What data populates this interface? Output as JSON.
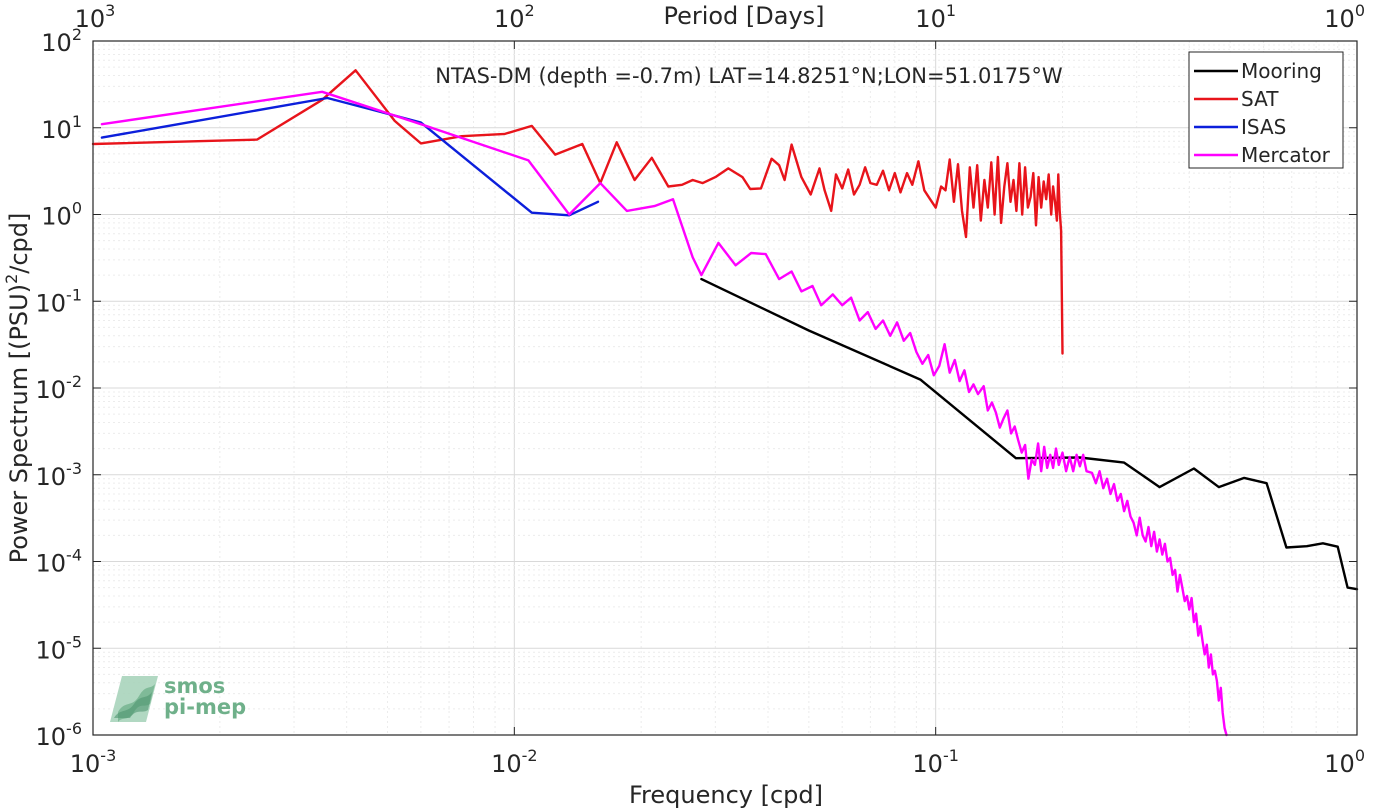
{
  "chart_data": {
    "type": "line",
    "title": "NTAS-DM (depth =-0.7m) LAT=14.8251°N;LON=51.0175°W",
    "xlabel": "Frequency [cpd]",
    "ylabel": "Power Spectrum [(PSU)²/cpd]",
    "ylabel_parts": {
      "pre": "Power Spectrum [(PSU)",
      "sup": "2",
      "post": "/cpd]"
    },
    "top_xlabel": "Period [Days]",
    "xscale": "log",
    "yscale": "log",
    "xlim": [
      0.001,
      1
    ],
    "ylim": [
      1e-06,
      100
    ],
    "grid": true,
    "legend_position": "top-right",
    "x_ticks": [
      {
        "value": 0.001,
        "base": "10",
        "exp": "-3"
      },
      {
        "value": 0.01,
        "base": "10",
        "exp": "-2"
      },
      {
        "value": 0.1,
        "base": "10",
        "exp": "-1"
      },
      {
        "value": 1,
        "base": "10",
        "exp": "0"
      }
    ],
    "top_ticks": [
      {
        "value": 1000,
        "base": "10",
        "exp": "3"
      },
      {
        "value": 100,
        "base": "10",
        "exp": "2"
      },
      {
        "value": 10,
        "base": "10",
        "exp": "1"
      },
      {
        "value": 1,
        "base": "10",
        "exp": "0"
      }
    ],
    "y_ticks": [
      {
        "value": 1e-06,
        "base": "10",
        "exp": "-6"
      },
      {
        "value": 1e-05,
        "base": "10",
        "exp": "-5"
      },
      {
        "value": 0.0001,
        "base": "10",
        "exp": "-4"
      },
      {
        "value": 0.001,
        "base": "10",
        "exp": "-3"
      },
      {
        "value": 0.01,
        "base": "10",
        "exp": "-2"
      },
      {
        "value": 0.1,
        "base": "10",
        "exp": "-1"
      },
      {
        "value": 1,
        "base": "10",
        "exp": "0"
      },
      {
        "value": 10,
        "base": "10",
        "exp": "1"
      },
      {
        "value": 100,
        "base": "10",
        "exp": "2"
      }
    ],
    "series": [
      {
        "name": "Mooring",
        "color": "#000000",
        "points": [
          [
            0.0278,
            0.18
          ],
          [
            0.05,
            0.046
          ],
          [
            0.092,
            0.0125
          ],
          [
            0.155,
            0.00155
          ],
          [
            0.22,
            0.00158
          ],
          [
            0.28,
            0.00138
          ],
          [
            0.34,
            0.00072
          ],
          [
            0.41,
            0.00118
          ],
          [
            0.47,
            0.00072
          ],
          [
            0.54,
            0.00092
          ],
          [
            0.61,
            0.0008
          ],
          [
            0.68,
            0.000145
          ],
          [
            0.76,
            0.00015
          ],
          [
            0.83,
            0.000162
          ],
          [
            0.9,
            0.000148
          ],
          [
            0.95,
            5e-05
          ],
          [
            1.0,
            4.8e-05
          ]
        ]
      },
      {
        "name": "SAT",
        "color": "#e8141b",
        "points": [
          [
            0.001,
            6.5
          ],
          [
            0.00245,
            7.3
          ],
          [
            0.0035,
            21
          ],
          [
            0.0042,
            46
          ],
          [
            0.0052,
            12
          ],
          [
            0.006,
            6.6
          ],
          [
            0.0075,
            8.0
          ],
          [
            0.0095,
            8.5
          ],
          [
            0.011,
            10.5
          ],
          [
            0.0125,
            4.9
          ],
          [
            0.0145,
            6.5
          ],
          [
            0.016,
            2.3
          ],
          [
            0.0175,
            6.8
          ],
          [
            0.0193,
            2.5
          ],
          [
            0.0212,
            4.5
          ],
          [
            0.0232,
            2.1
          ],
          [
            0.025,
            2.2
          ],
          [
            0.0265,
            2.5
          ],
          [
            0.028,
            2.3
          ],
          [
            0.03,
            2.7
          ],
          [
            0.0322,
            3.4
          ],
          [
            0.0348,
            2.7
          ],
          [
            0.0363,
            1.97
          ],
          [
            0.0385,
            2.0
          ],
          [
            0.0408,
            4.4
          ],
          [
            0.0425,
            3.7
          ],
          [
            0.0438,
            2.5
          ],
          [
            0.0455,
            6.4
          ],
          [
            0.048,
            2.7
          ],
          [
            0.0505,
            1.7
          ],
          [
            0.053,
            3.4
          ],
          [
            0.0545,
            1.9
          ],
          [
            0.0565,
            1.1
          ],
          [
            0.058,
            2.9
          ],
          [
            0.06,
            2.0
          ],
          [
            0.062,
            3.3
          ],
          [
            0.064,
            1.7
          ],
          [
            0.066,
            2.2
          ],
          [
            0.068,
            3.5
          ],
          [
            0.07,
            2.3
          ],
          [
            0.0725,
            2.2
          ],
          [
            0.075,
            3.2
          ],
          [
            0.0775,
            1.9
          ],
          [
            0.08,
            3.0
          ],
          [
            0.0825,
            1.8
          ],
          [
            0.0855,
            3.0
          ],
          [
            0.088,
            2.2
          ],
          [
            0.091,
            4.1
          ],
          [
            0.094,
            1.9
          ],
          [
            0.097,
            1.5
          ],
          [
            0.1,
            1.2
          ],
          [
            0.103,
            2.1
          ],
          [
            0.1055,
            1.9
          ],
          [
            0.108,
            4.3
          ],
          [
            0.1105,
            1.4
          ],
          [
            0.113,
            3.8
          ],
          [
            0.1155,
            1.1
          ],
          [
            0.118,
            0.55
          ],
          [
            0.1205,
            3.5
          ],
          [
            0.123,
            1.2
          ],
          [
            0.1255,
            3.7
          ],
          [
            0.128,
            0.85
          ],
          [
            0.1305,
            2.5
          ],
          [
            0.133,
            1.2
          ],
          [
            0.1355,
            4.0
          ],
          [
            0.138,
            1.0
          ],
          [
            0.1405,
            4.6
          ],
          [
            0.143,
            0.8
          ],
          [
            0.1455,
            2.1
          ],
          [
            0.148,
            3.9
          ],
          [
            0.1505,
            1.4
          ],
          [
            0.153,
            2.5
          ],
          [
            0.1555,
            1.1
          ],
          [
            0.158,
            3.9
          ],
          [
            0.1605,
            1.0
          ],
          [
            0.163,
            3.5
          ],
          [
            0.1655,
            1.2
          ],
          [
            0.168,
            1.6
          ],
          [
            0.1705,
            3.0
          ],
          [
            0.173,
            0.75
          ],
          [
            0.1755,
            2.7
          ],
          [
            0.178,
            1.2
          ],
          [
            0.1805,
            2.4
          ],
          [
            0.183,
            1.5
          ],
          [
            0.1855,
            2.9
          ],
          [
            0.188,
            1.0
          ],
          [
            0.19,
            2.1
          ],
          [
            0.192,
            1.4
          ],
          [
            0.194,
            0.85
          ],
          [
            0.1955,
            2.9
          ],
          [
            0.197,
            1.1
          ],
          [
            0.1985,
            0.65
          ],
          [
            0.2,
            0.025
          ]
        ]
      },
      {
        "name": "ISAS",
        "color": "#0c1fdb",
        "points": [
          [
            0.00105,
            7.7
          ],
          [
            0.0036,
            22
          ],
          [
            0.006,
            11.5
          ],
          [
            0.011,
            1.05
          ],
          [
            0.0135,
            0.98
          ],
          [
            0.0158,
            1.4
          ]
        ]
      },
      {
        "name": "Mercator",
        "color": "#ff00ff",
        "points": [
          [
            0.00105,
            11
          ],
          [
            0.0035,
            26
          ],
          [
            0.006,
            11
          ],
          [
            0.0108,
            4.2
          ],
          [
            0.0135,
            1.0
          ],
          [
            0.016,
            2.3
          ],
          [
            0.0185,
            1.1
          ],
          [
            0.0215,
            1.25
          ],
          [
            0.0238,
            1.5
          ],
          [
            0.0265,
            0.32
          ],
          [
            0.0278,
            0.2
          ],
          [
            0.0305,
            0.47
          ],
          [
            0.0335,
            0.26
          ],
          [
            0.0365,
            0.36
          ],
          [
            0.0395,
            0.35
          ],
          [
            0.0425,
            0.18
          ],
          [
            0.0455,
            0.22
          ],
          [
            0.048,
            0.13
          ],
          [
            0.051,
            0.15
          ],
          [
            0.0535,
            0.09
          ],
          [
            0.057,
            0.12
          ],
          [
            0.06,
            0.09
          ],
          [
            0.063,
            0.11
          ],
          [
            0.066,
            0.06
          ],
          [
            0.069,
            0.075
          ],
          [
            0.072,
            0.048
          ],
          [
            0.075,
            0.06
          ],
          [
            0.078,
            0.04
          ],
          [
            0.081,
            0.057
          ],
          [
            0.084,
            0.035
          ],
          [
            0.087,
            0.043
          ],
          [
            0.09,
            0.026
          ],
          [
            0.093,
            0.019
          ],
          [
            0.096,
            0.024
          ],
          [
            0.099,
            0.014
          ],
          [
            0.102,
            0.018
          ],
          [
            0.105,
            0.032
          ],
          [
            0.108,
            0.015
          ],
          [
            0.111,
            0.021
          ],
          [
            0.114,
            0.012
          ],
          [
            0.117,
            0.016
          ],
          [
            0.12,
            0.009
          ],
          [
            0.123,
            0.011
          ],
          [
            0.126,
            0.0085
          ],
          [
            0.13,
            0.0105
          ],
          [
            0.133,
            0.0055
          ],
          [
            0.136,
            0.0068
          ],
          [
            0.139,
            0.0052
          ],
          [
            0.142,
            0.0035
          ],
          [
            0.145,
            0.0045
          ],
          [
            0.148,
            0.0055
          ],
          [
            0.151,
            0.003
          ],
          [
            0.154,
            0.0036
          ],
          [
            0.157,
            0.0025
          ],
          [
            0.16,
            0.0018
          ],
          [
            0.163,
            0.0022
          ],
          [
            0.166,
            0.0009
          ],
          [
            0.169,
            0.0015
          ],
          [
            0.172,
            0.0013
          ],
          [
            0.175,
            0.0023
          ],
          [
            0.178,
            0.0011
          ],
          [
            0.181,
            0.0021
          ],
          [
            0.184,
            0.0012
          ],
          [
            0.187,
            0.0017
          ],
          [
            0.19,
            0.0012
          ],
          [
            0.193,
            0.002
          ],
          [
            0.196,
            0.0013
          ],
          [
            0.2,
            0.0018
          ],
          [
            0.204,
            0.0011
          ],
          [
            0.208,
            0.0016
          ],
          [
            0.212,
            0.0011
          ],
          [
            0.216,
            0.0017
          ],
          [
            0.22,
            0.00125
          ],
          [
            0.224,
            0.0017
          ],
          [
            0.228,
            0.0011
          ],
          [
            0.235,
            0.00105
          ],
          [
            0.24,
            0.0008
          ],
          [
            0.245,
            0.0011
          ],
          [
            0.25,
            0.0007
          ],
          [
            0.255,
            0.0009
          ],
          [
            0.26,
            0.0006
          ],
          [
            0.265,
            0.00078
          ],
          [
            0.27,
            0.0005
          ],
          [
            0.275,
            0.0006
          ],
          [
            0.28,
            0.00038
          ],
          [
            0.285,
            0.0005
          ],
          [
            0.29,
            0.00033
          ],
          [
            0.295,
            0.00028
          ],
          [
            0.3,
            0.0002
          ],
          [
            0.305,
            0.00032
          ],
          [
            0.31,
            0.0002
          ],
          [
            0.315,
            0.00017
          ],
          [
            0.32,
            0.00025
          ],
          [
            0.325,
            0.00015
          ],
          [
            0.33,
            0.00022
          ],
          [
            0.335,
            0.00013
          ],
          [
            0.34,
            0.00018
          ],
          [
            0.345,
            0.00012
          ],
          [
            0.35,
            0.00016
          ],
          [
            0.355,
            0.0001
          ],
          [
            0.36,
            0.00011
          ],
          [
            0.365,
            7e-05
          ],
          [
            0.37,
            8e-05
          ],
          [
            0.375,
            4.5e-05
          ],
          [
            0.38,
            7e-05
          ],
          [
            0.385,
            5e-05
          ],
          [
            0.39,
            3.5e-05
          ],
          [
            0.395,
            4e-05
          ],
          [
            0.4,
            2.8e-05
          ],
          [
            0.405,
            3.8e-05
          ],
          [
            0.41,
            2e-05
          ],
          [
            0.415,
            2.5e-05
          ],
          [
            0.42,
            1.4e-05
          ],
          [
            0.425,
            1.8e-05
          ],
          [
            0.43,
            1.2e-05
          ],
          [
            0.435,
            8.5e-06
          ],
          [
            0.44,
            1.1e-05
          ],
          [
            0.445,
            6e-06
          ],
          [
            0.45,
            8.5e-06
          ],
          [
            0.455,
            5e-06
          ],
          [
            0.46,
            5.5e-06
          ],
          [
            0.465,
            4.2e-06
          ],
          [
            0.47,
            2.5e-06
          ],
          [
            0.475,
            3.5e-06
          ],
          [
            0.48,
            1.8e-06
          ],
          [
            0.485,
            1.2e-06
          ],
          [
            0.49,
            1e-06
          ]
        ]
      }
    ],
    "legend": [
      "Mooring",
      "SAT",
      "ISAS",
      "Mercator"
    ]
  },
  "logo": {
    "line1": "smos",
    "line2": "pi-mep"
  }
}
